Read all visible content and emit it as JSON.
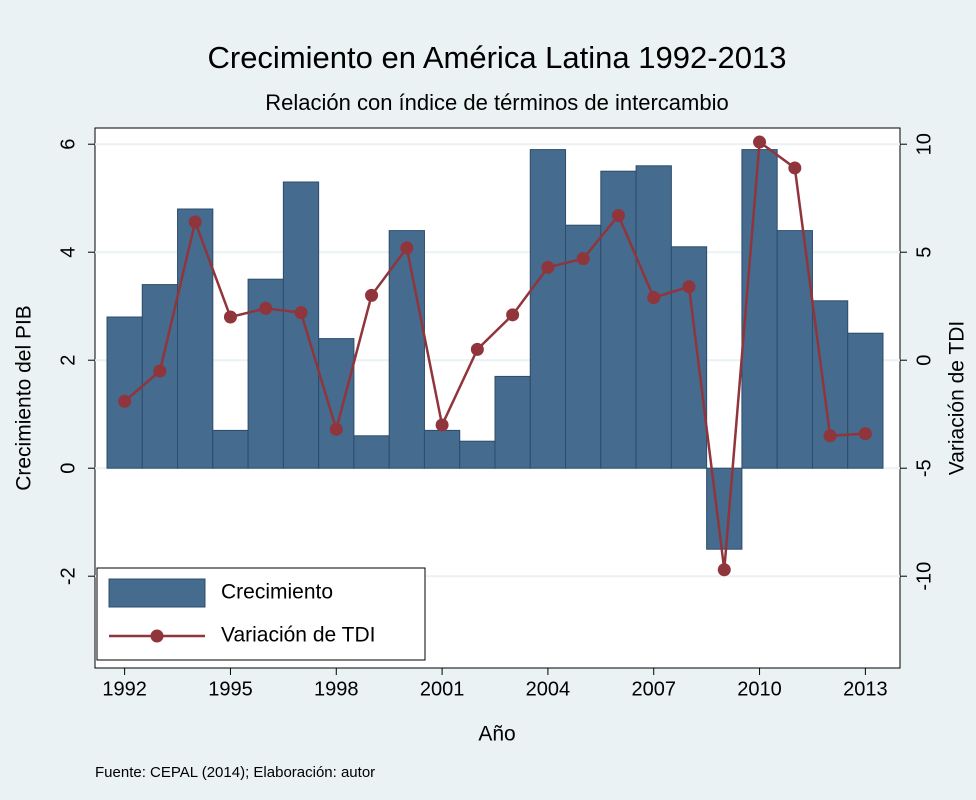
{
  "chart_data": {
    "type": "bar_line",
    "title": "Crecimiento en América Latina 1992-2013",
    "subtitle": "Relación con índice de términos de intercambio",
    "x_label": "Año",
    "y_label": "Crecimiento del PIB",
    "y2_label": "Variación de TDI",
    "note": "Fuente: CEPAL (2014); Elaboración: autor",
    "x": [
      1992,
      1993,
      1994,
      1995,
      1996,
      1997,
      1998,
      1999,
      2000,
      2001,
      2002,
      2003,
      2004,
      2005,
      2006,
      2007,
      2008,
      2009,
      2010,
      2011,
      2012,
      2013
    ],
    "series": [
      {
        "name": "Crecimiento",
        "kind": "bar",
        "color": "#456b8e",
        "values": [
          2.8,
          3.4,
          4.8,
          0.7,
          3.5,
          5.3,
          2.4,
          0.6,
          4.4,
          0.7,
          0.5,
          1.7,
          5.9,
          4.5,
          5.5,
          5.6,
          4.1,
          -1.5,
          5.9,
          4.4,
          3.1,
          2.5
        ]
      },
      {
        "name": "Variación de TDI",
        "kind": "line",
        "axis": "y2",
        "color": "#90353b",
        "values": [
          -1.9,
          -0.5,
          6.4,
          2.0,
          2.4,
          2.2,
          -3.2,
          3.0,
          5.2,
          -3.0,
          0.5,
          2.1,
          4.3,
          4.7,
          6.7,
          2.9,
          3.4,
          -9.7,
          10.1,
          8.9,
          -3.5,
          -3.4
        ]
      }
    ],
    "xlim": [
      1991.5,
      2013.5
    ],
    "xticks": [
      1992,
      1995,
      1998,
      2001,
      2004,
      2007,
      2010,
      2013
    ],
    "ylim": [
      -3.7,
      6.3
    ],
    "yticks": [
      -2,
      0,
      2,
      4,
      6
    ],
    "y2lim": [
      -14.25,
      10.75
    ],
    "y2ticks": [
      -10,
      -5,
      0,
      5,
      10
    ],
    "grid": true,
    "legend": "lower left"
  }
}
